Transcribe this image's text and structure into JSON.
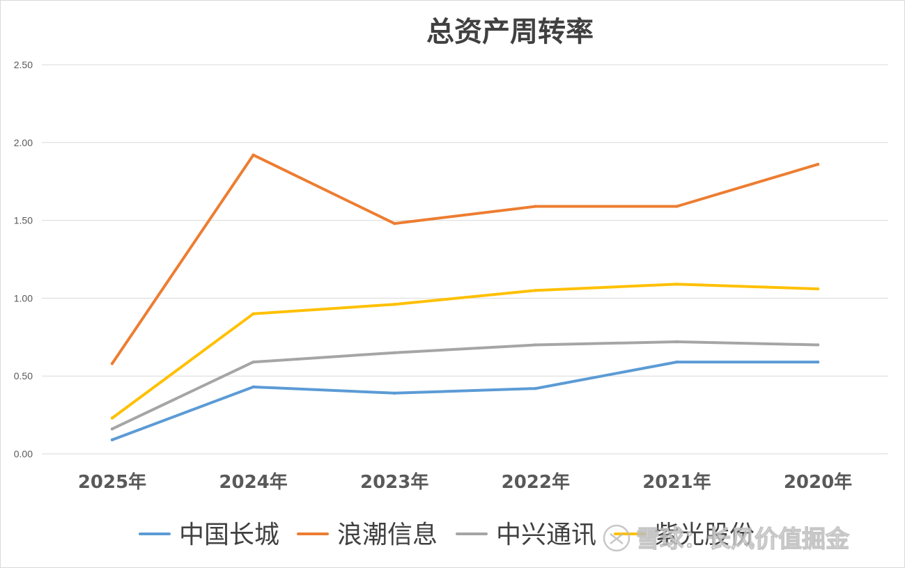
{
  "chart_data": {
    "type": "line",
    "title": "总资产周转率",
    "xlabel": "",
    "ylabel": "",
    "categories": [
      "2025年",
      "2024年",
      "2023年",
      "2022年",
      "2021年",
      "2020年"
    ],
    "ylim": [
      0,
      2.5
    ],
    "yticks": [
      "0.00",
      "0.50",
      "1.00",
      "1.50",
      "2.00",
      "2.50"
    ],
    "grid": true,
    "legend_position": "bottom",
    "series": [
      {
        "name": "中国长城",
        "color": "#5b9bd5",
        "values": [
          0.09,
          0.43,
          0.39,
          0.42,
          0.59,
          0.59
        ]
      },
      {
        "name": "浪潮信息",
        "color": "#ed7d31",
        "values": [
          0.58,
          1.92,
          1.48,
          1.59,
          1.59,
          1.86
        ]
      },
      {
        "name": "中兴通讯",
        "color": "#a5a5a5",
        "values": [
          0.16,
          0.59,
          0.65,
          0.7,
          0.72,
          0.7
        ]
      },
      {
        "name": "紫光股份",
        "color": "#ffc000",
        "values": [
          0.23,
          0.9,
          0.96,
          1.05,
          1.09,
          1.06
        ]
      }
    ]
  },
  "watermark": {
    "text": "雪球：长风价值掘金",
    "icon": "snowball-logo-icon"
  }
}
